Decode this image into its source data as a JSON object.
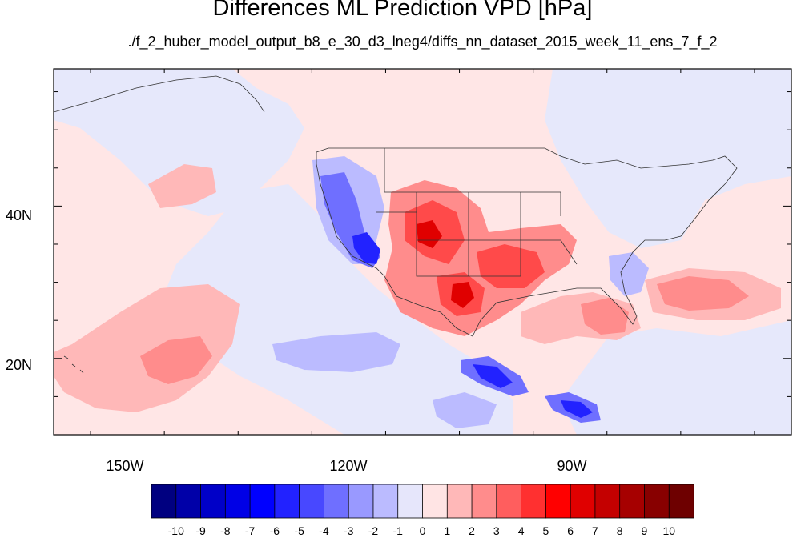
{
  "title": "Differences ML Prediction VPD [hPa]",
  "subtitle": "./f_2_huber_model_output_b8_e_30_d3_lneg4/diffs_nn_dataset_2015_week_11_ens_7_f_2",
  "map": {
    "lon_range": [
      -160,
      -60
    ],
    "lat_range": [
      10,
      58
    ],
    "x_ticks": [
      {
        "lon": -150,
        "label": "150W"
      },
      {
        "lon": -120,
        "label": "120W"
      },
      {
        "lon": -90,
        "label": "90W"
      }
    ],
    "y_ticks": [
      {
        "lat": 40,
        "label": "40N"
      },
      {
        "lat": 20,
        "label": "20N"
      }
    ]
  },
  "colorbar": {
    "labels": [
      "-10",
      "-9",
      "-8",
      "-7",
      "-6",
      "-5",
      "-4",
      "-3",
      "-2",
      "-1",
      "0",
      "1",
      "2",
      "3",
      "4",
      "5",
      "6",
      "7",
      "8",
      "9",
      "10"
    ],
    "colors": [
      "#000080",
      "#0000a8",
      "#0000c8",
      "#0000e6",
      "#0000ff",
      "#2222ff",
      "#4848ff",
      "#6f6fff",
      "#9999ff",
      "#bbbbff",
      "#e6e6fb",
      "#ffe4e4",
      "#ffb8b8",
      "#ff8c8c",
      "#ff5e5e",
      "#ff3030",
      "#ff0000",
      "#e00000",
      "#c40000",
      "#a60000",
      "#880000",
      "#6e0000"
    ]
  }
}
